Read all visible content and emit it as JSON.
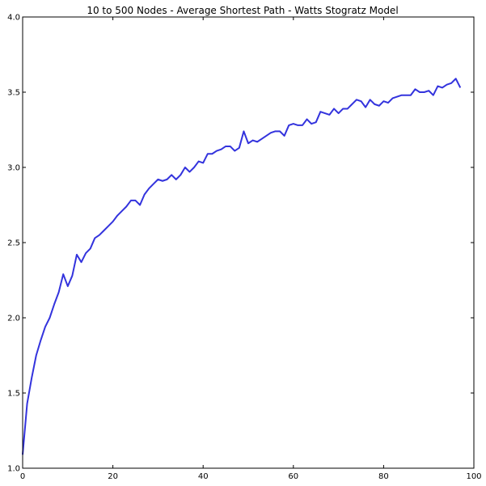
{
  "chart_data": {
    "type": "line",
    "title": "10 to 500 Nodes - Average Shortest Path - Watts Stogratz Model",
    "xlabel": "",
    "ylabel": "",
    "xlim": [
      0,
      100
    ],
    "ylim": [
      1.0,
      4.0
    ],
    "xticks": [
      0,
      20,
      40,
      60,
      80,
      100
    ],
    "xtick_labels": [
      "0",
      "20",
      "40",
      "60",
      "80",
      "100"
    ],
    "yticks": [
      1.0,
      1.5,
      2.0,
      2.5,
      3.0,
      3.5,
      4.0
    ],
    "ytick_labels": [
      "1.0",
      "1.5",
      "2.0",
      "2.5",
      "3.0",
      "3.5",
      "4.0"
    ],
    "grid": false,
    "legend": "none",
    "series": [
      {
        "color": "#3333dd",
        "x": [
          0,
          1,
          2,
          3,
          4,
          5,
          6,
          7,
          8,
          9,
          10,
          11,
          12,
          13,
          14,
          15,
          16,
          17,
          18,
          19,
          20,
          21,
          22,
          23,
          24,
          25,
          26,
          27,
          28,
          29,
          30,
          31,
          32,
          33,
          34,
          35,
          36,
          37,
          38,
          39,
          40,
          41,
          42,
          43,
          44,
          45,
          46,
          47,
          48,
          49,
          50,
          51,
          52,
          53,
          54,
          55,
          56,
          57,
          58,
          59,
          60,
          61,
          62,
          63,
          64,
          65,
          66,
          67,
          68,
          69,
          70,
          71,
          72,
          73,
          74,
          75,
          76,
          77,
          78,
          79,
          80,
          81,
          82,
          83,
          84,
          85,
          86,
          87,
          88,
          89,
          90,
          91,
          92,
          93,
          94,
          95,
          96,
          97
        ],
        "y": [
          1.09,
          1.43,
          1.6,
          1.75,
          1.85,
          1.94,
          2.0,
          2.09,
          2.17,
          2.29,
          2.21,
          2.28,
          2.42,
          2.37,
          2.43,
          2.46,
          2.53,
          2.55,
          2.58,
          2.61,
          2.64,
          2.68,
          2.71,
          2.74,
          2.78,
          2.78,
          2.75,
          2.82,
          2.86,
          2.89,
          2.92,
          2.91,
          2.92,
          2.95,
          2.92,
          2.95,
          3.0,
          2.97,
          3.0,
          3.04,
          3.03,
          3.09,
          3.09,
          3.11,
          3.12,
          3.14,
          3.14,
          3.11,
          3.13,
          3.24,
          3.16,
          3.18,
          3.17,
          3.19,
          3.21,
          3.23,
          3.24,
          3.24,
          3.21,
          3.28,
          3.29,
          3.28,
          3.28,
          3.32,
          3.29,
          3.3,
          3.37,
          3.36,
          3.35,
          3.39,
          3.36,
          3.39,
          3.39,
          3.42,
          3.45,
          3.44,
          3.4,
          3.45,
          3.42,
          3.41,
          3.44,
          3.43,
          3.46,
          3.47,
          3.48,
          3.48,
          3.48,
          3.52,
          3.5,
          3.5,
          3.51,
          3.48,
          3.54,
          3.53,
          3.55,
          3.56,
          3.59,
          3.53
        ]
      }
    ]
  }
}
